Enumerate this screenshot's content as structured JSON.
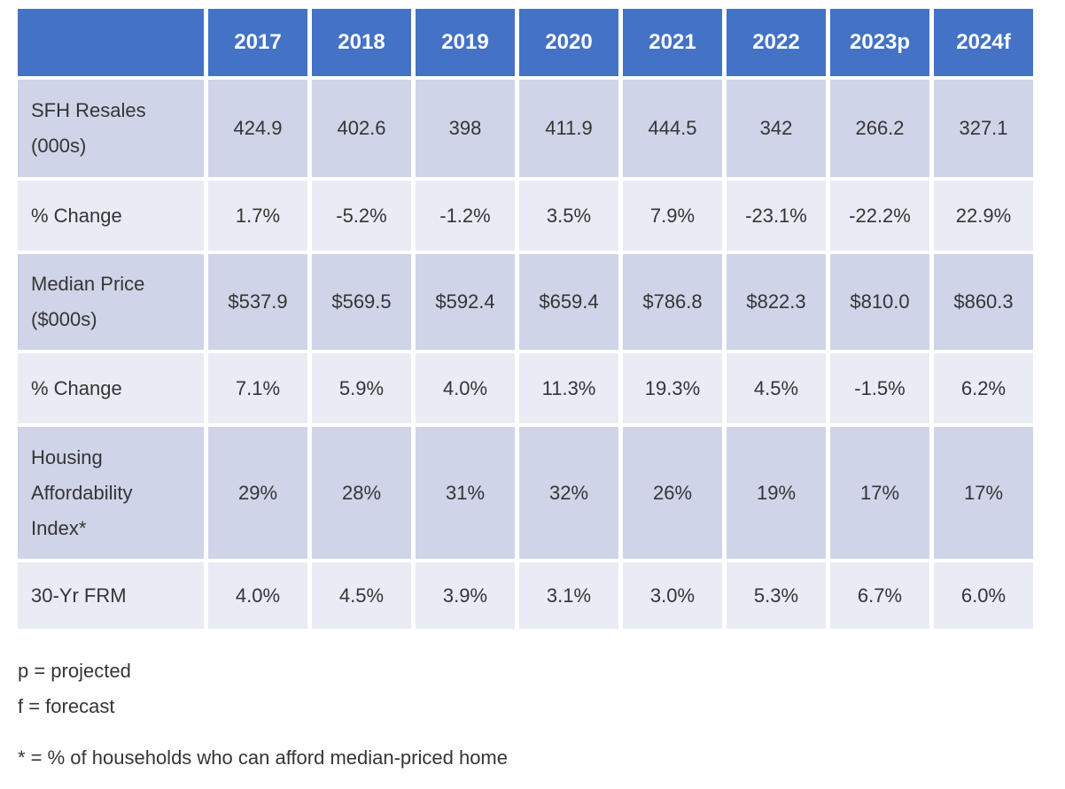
{
  "table": {
    "columns": [
      "",
      "2017",
      "2018",
      "2019",
      "2020",
      "2021",
      "2022",
      "2023p",
      "2024f"
    ],
    "rows": [
      {
        "label": "SFH Resales (000s)",
        "values": [
          "424.9",
          "402.6",
          "398",
          "411.9",
          "444.5",
          "342",
          "266.2",
          "327.1"
        ]
      },
      {
        "label": "% Change",
        "values": [
          "1.7%",
          "-5.2%",
          "-1.2%",
          "3.5%",
          "7.9%",
          "-23.1%",
          "-22.2%",
          "22.9%"
        ]
      },
      {
        "label": "Median Price ($000s)",
        "values": [
          "$537.9",
          "$569.5",
          "$592.4",
          "$659.4",
          "$786.8",
          "$822.3",
          "$810.0",
          "$860.3"
        ]
      },
      {
        "label": "% Change",
        "values": [
          "7.1%",
          "5.9%",
          "4.0%",
          "11.3%",
          "19.3%",
          "4.5%",
          "-1.5%",
          "6.2%"
        ]
      },
      {
        "label": "Housing Affordability Index*",
        "values": [
          "29%",
          "28%",
          "31%",
          "32%",
          "26%",
          "19%",
          "17%",
          "17%"
        ]
      },
      {
        "label": "30-Yr FRM",
        "values": [
          "4.0%",
          "4.5%",
          "3.9%",
          "3.1%",
          "3.0%",
          "5.3%",
          "6.7%",
          "6.0%"
        ]
      }
    ]
  },
  "footnotes": [
    "p = projected",
    "f = forecast",
    "* = % of households who can afford median-priced home"
  ],
  "colors": {
    "header_bg": "#4472C4",
    "header_text": "#FFFFFF",
    "row_odd_bg": "#CFD4E8",
    "row_even_bg": "#E9EBF5",
    "cell_gap": "#FFFFFF",
    "body_text": "#353535"
  },
  "chart_data": {
    "type": "table",
    "title": "Housing market summary 2017-2024 (p = projected, f = forecast)",
    "categories": [
      "2017",
      "2018",
      "2019",
      "2020",
      "2021",
      "2022",
      "2023p",
      "2024f"
    ],
    "series": [
      {
        "name": "SFH Resales (000s)",
        "values": [
          424.9,
          402.6,
          398,
          411.9,
          444.5,
          342,
          266.2,
          327.1
        ]
      },
      {
        "name": "SFH Resales % Change",
        "values": [
          1.7,
          -5.2,
          -1.2,
          3.5,
          7.9,
          -23.1,
          -22.2,
          22.9
        ]
      },
      {
        "name": "Median Price ($000s)",
        "values": [
          537.9,
          569.5,
          592.4,
          659.4,
          786.8,
          822.3,
          810.0,
          860.3
        ]
      },
      {
        "name": "Median Price % Change",
        "values": [
          7.1,
          5.9,
          4.0,
          11.3,
          19.3,
          4.5,
          -1.5,
          6.2
        ]
      },
      {
        "name": "Housing Affordability Index* (%)",
        "values": [
          29,
          28,
          31,
          32,
          26,
          19,
          17,
          17
        ]
      },
      {
        "name": "30-Yr FRM (%)",
        "values": [
          4.0,
          4.5,
          3.9,
          3.1,
          3.0,
          5.3,
          6.7,
          6.0
        ]
      }
    ],
    "notes": [
      "p = projected",
      "f = forecast",
      "* = % of households who can afford median-priced home"
    ]
  }
}
